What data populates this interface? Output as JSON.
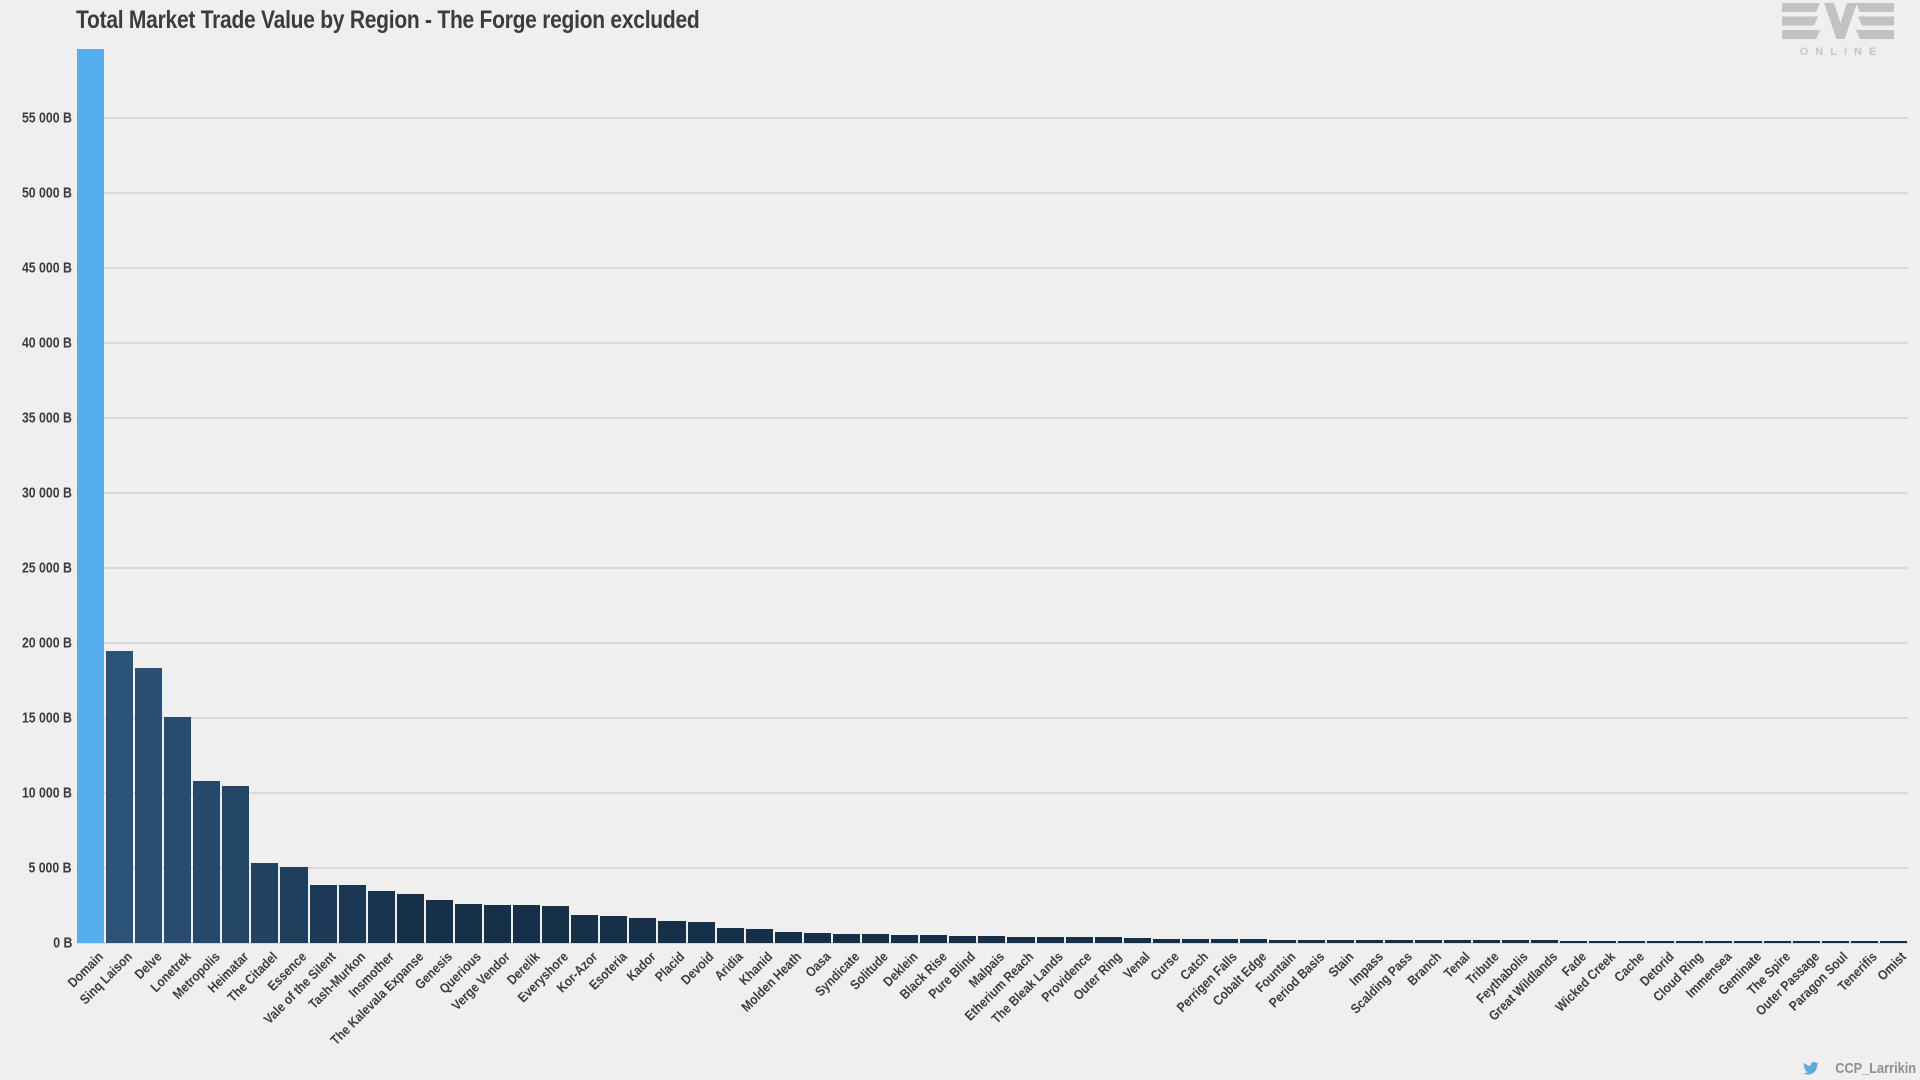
{
  "title": "Total Market Trade Value by Region - The Forge region excluded",
  "branding": {
    "logo_main": "EVE",
    "logo_sub": "ONLINE"
  },
  "attribution": {
    "twitter_handle": "CCP_Larrikin"
  },
  "colors": {
    "background": "#efefef",
    "gridline": "#d9d9d9",
    "text": "#3c3c3c",
    "highlight_bar": "#55AEF0",
    "bar_ramp_start": "#2B5378",
    "bar_ramp_end": "#17304A",
    "logo_gray": "#c2c2c2",
    "twitter_blue": "#5EA9DD",
    "attribution_text": "#8f8f8f"
  },
  "chart_data": {
    "type": "bar",
    "title": "Total Market Trade Value by Region - The Forge region excluded",
    "xlabel": "",
    "ylabel": "",
    "unit": "B",
    "grid": true,
    "legend": false,
    "ylim": [
      0,
      59600
    ],
    "y_ticks": [
      {
        "v": 0,
        "label": "0 B"
      },
      {
        "v": 5000,
        "label": "5 000 B"
      },
      {
        "v": 10000,
        "label": "10 000 B"
      },
      {
        "v": 15000,
        "label": "15 000 B"
      },
      {
        "v": 20000,
        "label": "20 000 B"
      },
      {
        "v": 25000,
        "label": "25 000 B"
      },
      {
        "v": 30000,
        "label": "30 000 B"
      },
      {
        "v": 35000,
        "label": "35 000 B"
      },
      {
        "v": 40000,
        "label": "40 000 B"
      },
      {
        "v": 45000,
        "label": "45 000 B"
      },
      {
        "v": 50000,
        "label": "50 000 B"
      },
      {
        "v": 55000,
        "label": "55 000 B"
      }
    ],
    "categories": [
      "Domain",
      "Sinq Laison",
      "Delve",
      "Lonetrek",
      "Metropolis",
      "Heimatar",
      "The Citadel",
      "Essence",
      "Vale of the Silent",
      "Tash-Murkon",
      "Insmother",
      "The Kalevala Expanse",
      "Genesis",
      "Querious",
      "Verge Vendor",
      "Derelik",
      "Everyshore",
      "Kor-Azor",
      "Esoteria",
      "Kador",
      "Placid",
      "Devoid",
      "Aridia",
      "Khanid",
      "Molden Heath",
      "Oasa",
      "Syndicate",
      "Solitude",
      "Deklein",
      "Black Rise",
      "Pure Blind",
      "Malpais",
      "Etherium Reach",
      "The Bleak Lands",
      "Providence",
      "Outer Ring",
      "Venal",
      "Curse",
      "Catch",
      "Perrigen Falls",
      "Cobalt Edge",
      "Fountain",
      "Period Basis",
      "Stain",
      "Impass",
      "Scalding Pass",
      "Branch",
      "Tenal",
      "Tribute",
      "Feythabolis",
      "Great Wildlands",
      "Fade",
      "Wicked Creek",
      "Cache",
      "Detorid",
      "Cloud Ring",
      "Immensea",
      "Geminate",
      "The Spire",
      "Outer Passage",
      "Paragon Soul",
      "Tenerifis",
      "Omist"
    ],
    "values": [
      59600,
      19500,
      18350,
      15050,
      10800,
      10500,
      5350,
      5100,
      3900,
      3870,
      3450,
      3260,
      2860,
      2620,
      2560,
      2530,
      2450,
      1870,
      1820,
      1690,
      1450,
      1390,
      1020,
      930,
      730,
      670,
      630,
      620,
      545,
      535,
      470,
      465,
      425,
      420,
      415,
      380,
      360,
      295,
      290,
      270,
      265,
      215,
      205,
      200,
      195,
      190,
      185,
      182,
      178,
      172,
      168,
      160,
      155,
      150,
      145,
      140,
      135,
      130,
      125,
      120,
      115,
      110,
      105
    ],
    "highlight_index": 0
  }
}
